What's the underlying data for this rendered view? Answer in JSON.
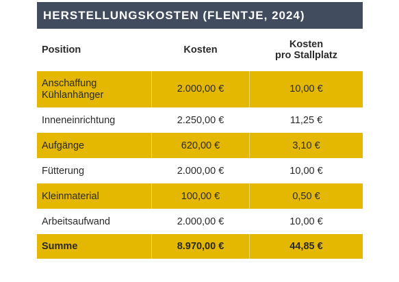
{
  "title": "HERSTELLUNGSKOSTEN (FLENTJE, 2024)",
  "headers": {
    "position": "Position",
    "kosten": "Kosten",
    "pro_stallplatz_line1": "Kosten",
    "pro_stallplatz_line2": "pro Stallplatz"
  },
  "rows": [
    {
      "position_line1": "Anschaffung",
      "position_line2": "Kühlanhänger",
      "kosten": "2.000,00 €",
      "pro_stallplatz": "10,00 €"
    },
    {
      "position": "Inneneinrichtung",
      "kosten": "2.250,00 €",
      "pro_stallplatz": "11,25 €"
    },
    {
      "position": "Aufgänge",
      "kosten": "620,00 €",
      "pro_stallplatz": "3,10 €"
    },
    {
      "position": "Fütterung",
      "kosten": "2.000,00 €",
      "pro_stallplatz": "10,00 €"
    },
    {
      "position": "Kleinmaterial",
      "kosten": "100,00 €",
      "pro_stallplatz": "0,50 €"
    },
    {
      "position": "Arbeitsaufwand",
      "kosten": "2.000,00 €",
      "pro_stallplatz": "10,00 €"
    }
  ],
  "sum": {
    "position": "Summe",
    "kosten": "8.970,00 €",
    "pro_stallplatz": "44,85 €"
  },
  "colors": {
    "title_bg": "#414d5e",
    "shade": "#e4b700"
  }
}
